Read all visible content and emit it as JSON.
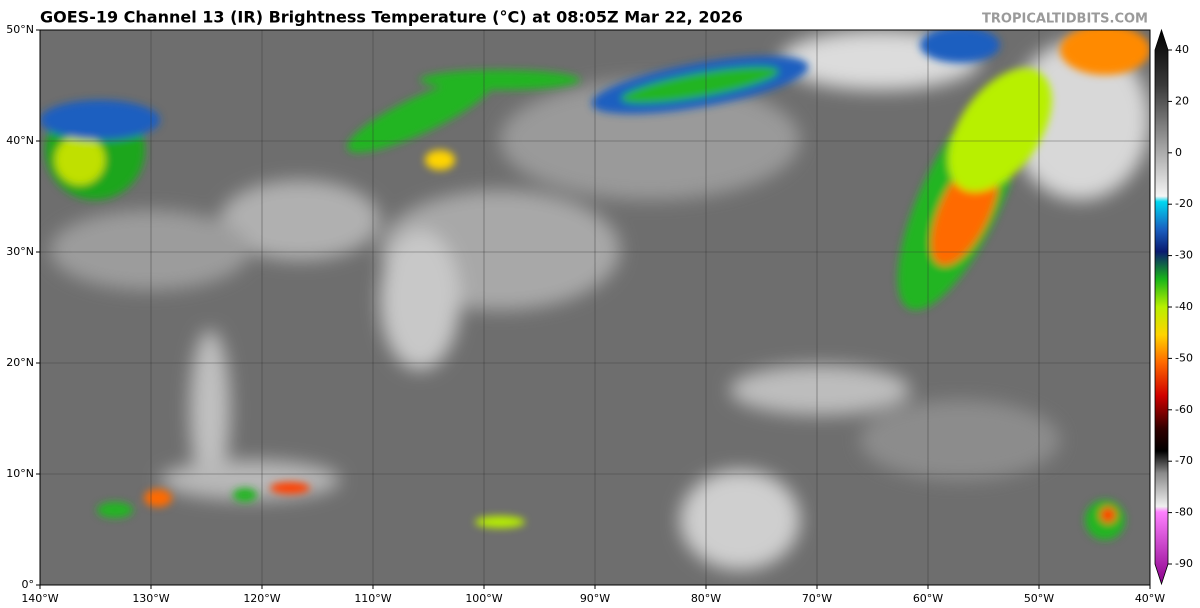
{
  "header": {
    "title": "GOES-19 Channel 13 (IR) Brightness Temperature (°C) at 08:05Z Mar 22, 2026",
    "credit": "TROPICALTIDBITS.COM"
  },
  "map": {
    "xlim": [
      -140,
      -40
    ],
    "ylim": [
      0,
      50
    ],
    "xticks": [
      {
        "value": -140,
        "label": "140°W"
      },
      {
        "value": -130,
        "label": "130°W"
      },
      {
        "value": -120,
        "label": "120°W"
      },
      {
        "value": -110,
        "label": "110°W"
      },
      {
        "value": -100,
        "label": "100°W"
      },
      {
        "value": -90,
        "label": "90°W"
      },
      {
        "value": -80,
        "label": "80°W"
      },
      {
        "value": -70,
        "label": "70°W"
      },
      {
        "value": -60,
        "label": "60°W"
      },
      {
        "value": -50,
        "label": "50°W"
      },
      {
        "value": -40,
        "label": "40°W"
      }
    ],
    "yticks": [
      {
        "value": 0,
        "label": "0°"
      },
      {
        "value": 10,
        "label": "10°N"
      },
      {
        "value": 20,
        "label": "20°N"
      },
      {
        "value": 30,
        "label": "30°N"
      },
      {
        "value": 40,
        "label": "40°N"
      },
      {
        "value": 50,
        "label": "50°N"
      }
    ]
  },
  "colorbar": {
    "ticks": [
      40,
      20,
      0,
      -20,
      -30,
      -40,
      -50,
      -60,
      -70,
      -80,
      -90
    ]
  }
}
